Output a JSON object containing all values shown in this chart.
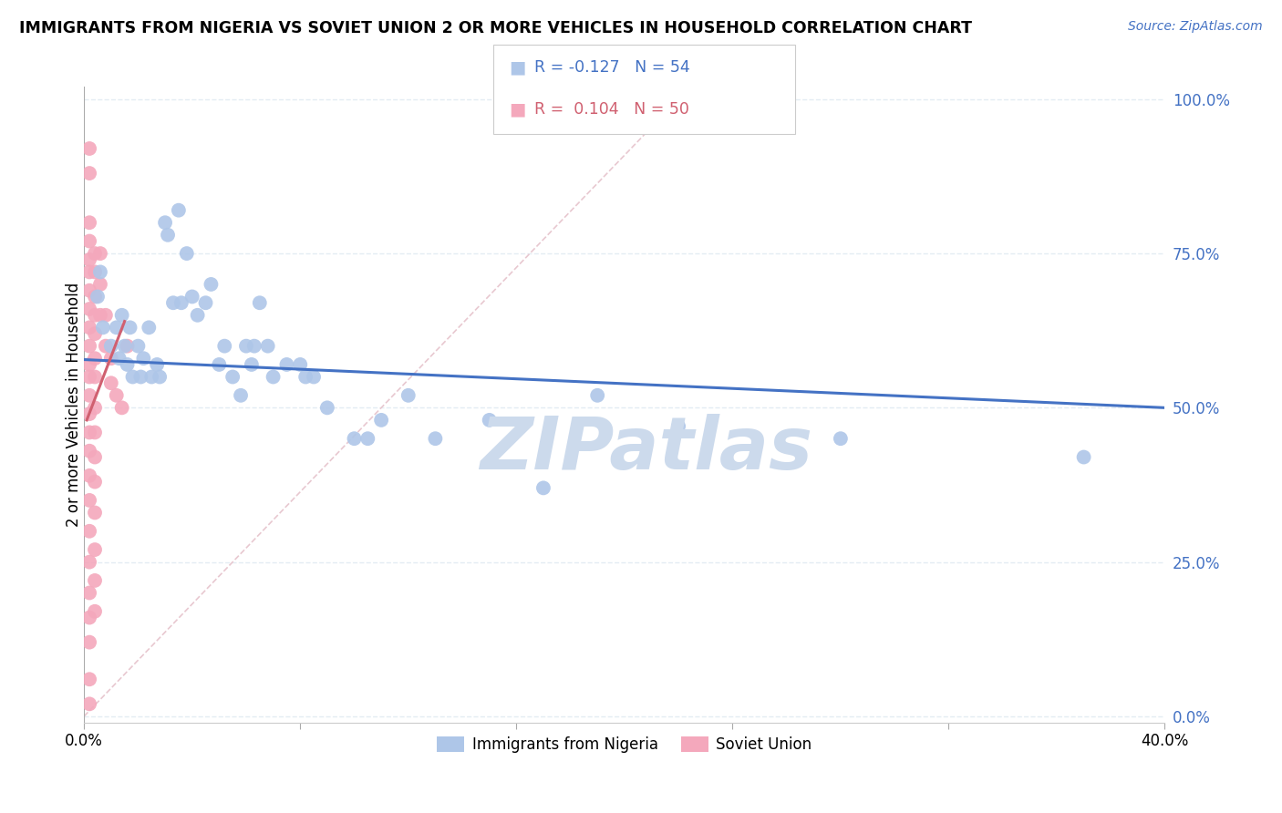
{
  "title": "IMMIGRANTS FROM NIGERIA VS SOVIET UNION 2 OR MORE VEHICLES IN HOUSEHOLD CORRELATION CHART",
  "source": "Source: ZipAtlas.com",
  "ylabel": "2 or more Vehicles in Household",
  "nigeria_R": -0.127,
  "nigeria_N": 54,
  "soviet_R": 0.104,
  "soviet_N": 50,
  "nigeria_color": "#aec6e8",
  "soviet_color": "#f4a8bc",
  "nigeria_line_color": "#4472c4",
  "soviet_line_color": "#d06070",
  "diag_line_color": "#e8c8d0",
  "nigeria_scatter": [
    [
      0.005,
      0.68
    ],
    [
      0.006,
      0.72
    ],
    [
      0.007,
      0.63
    ],
    [
      0.01,
      0.6
    ],
    [
      0.012,
      0.63
    ],
    [
      0.013,
      0.58
    ],
    [
      0.014,
      0.65
    ],
    [
      0.015,
      0.6
    ],
    [
      0.016,
      0.57
    ],
    [
      0.017,
      0.63
    ],
    [
      0.018,
      0.55
    ],
    [
      0.02,
      0.6
    ],
    [
      0.021,
      0.55
    ],
    [
      0.022,
      0.58
    ],
    [
      0.024,
      0.63
    ],
    [
      0.025,
      0.55
    ],
    [
      0.027,
      0.57
    ],
    [
      0.028,
      0.55
    ],
    [
      0.03,
      0.8
    ],
    [
      0.031,
      0.78
    ],
    [
      0.033,
      0.67
    ],
    [
      0.035,
      0.82
    ],
    [
      0.036,
      0.67
    ],
    [
      0.038,
      0.75
    ],
    [
      0.04,
      0.68
    ],
    [
      0.042,
      0.65
    ],
    [
      0.045,
      0.67
    ],
    [
      0.047,
      0.7
    ],
    [
      0.05,
      0.57
    ],
    [
      0.052,
      0.6
    ],
    [
      0.055,
      0.55
    ],
    [
      0.058,
      0.52
    ],
    [
      0.06,
      0.6
    ],
    [
      0.062,
      0.57
    ],
    [
      0.063,
      0.6
    ],
    [
      0.065,
      0.67
    ],
    [
      0.068,
      0.6
    ],
    [
      0.07,
      0.55
    ],
    [
      0.075,
      0.57
    ],
    [
      0.08,
      0.57
    ],
    [
      0.082,
      0.55
    ],
    [
      0.085,
      0.55
    ],
    [
      0.09,
      0.5
    ],
    [
      0.1,
      0.45
    ],
    [
      0.105,
      0.45
    ],
    [
      0.11,
      0.48
    ],
    [
      0.12,
      0.52
    ],
    [
      0.13,
      0.45
    ],
    [
      0.15,
      0.48
    ],
    [
      0.17,
      0.37
    ],
    [
      0.19,
      0.52
    ],
    [
      0.22,
      0.47
    ],
    [
      0.28,
      0.45
    ],
    [
      0.37,
      0.42
    ]
  ],
  "soviet_scatter": [
    [
      0.002,
      0.92
    ],
    [
      0.002,
      0.88
    ],
    [
      0.002,
      0.8
    ],
    [
      0.002,
      0.77
    ],
    [
      0.002,
      0.74
    ],
    [
      0.002,
      0.72
    ],
    [
      0.002,
      0.69
    ],
    [
      0.002,
      0.66
    ],
    [
      0.002,
      0.63
    ],
    [
      0.002,
      0.6
    ],
    [
      0.002,
      0.57
    ],
    [
      0.002,
      0.55
    ],
    [
      0.002,
      0.52
    ],
    [
      0.002,
      0.49
    ],
    [
      0.002,
      0.46
    ],
    [
      0.002,
      0.43
    ],
    [
      0.002,
      0.39
    ],
    [
      0.002,
      0.35
    ],
    [
      0.002,
      0.3
    ],
    [
      0.002,
      0.25
    ],
    [
      0.002,
      0.2
    ],
    [
      0.002,
      0.16
    ],
    [
      0.002,
      0.12
    ],
    [
      0.002,
      0.06
    ],
    [
      0.002,
      0.02
    ],
    [
      0.004,
      0.75
    ],
    [
      0.004,
      0.72
    ],
    [
      0.004,
      0.68
    ],
    [
      0.004,
      0.65
    ],
    [
      0.004,
      0.62
    ],
    [
      0.004,
      0.58
    ],
    [
      0.004,
      0.55
    ],
    [
      0.004,
      0.5
    ],
    [
      0.004,
      0.46
    ],
    [
      0.004,
      0.42
    ],
    [
      0.004,
      0.38
    ],
    [
      0.004,
      0.33
    ],
    [
      0.004,
      0.27
    ],
    [
      0.004,
      0.22
    ],
    [
      0.004,
      0.17
    ],
    [
      0.006,
      0.75
    ],
    [
      0.006,
      0.7
    ],
    [
      0.006,
      0.65
    ],
    [
      0.008,
      0.65
    ],
    [
      0.008,
      0.6
    ],
    [
      0.01,
      0.58
    ],
    [
      0.01,
      0.54
    ],
    [
      0.012,
      0.52
    ],
    [
      0.014,
      0.5
    ],
    [
      0.016,
      0.6
    ]
  ],
  "watermark": "ZIPatlas",
  "watermark_color": "#ccdaec",
  "background_color": "#ffffff",
  "grid_color": "#dde8f0",
  "ytick_color": "#4472c4",
  "xlim": [
    0.0,
    0.4
  ],
  "ylim": [
    -0.01,
    1.02
  ],
  "yticks": [
    0.0,
    0.25,
    0.5,
    0.75,
    1.0
  ],
  "ytick_labels": [
    "0.0%",
    "25.0%",
    "50.0%",
    "75.0%",
    "100.0%"
  ],
  "xticks": [
    0.0,
    0.08,
    0.16,
    0.24,
    0.32,
    0.4
  ],
  "xtick_labels": [
    "0.0%",
    "",
    "",
    "",
    "",
    "40.0%"
  ],
  "nigeria_line_x": [
    0.0,
    0.4
  ],
  "nigeria_line_y": [
    0.578,
    0.5
  ],
  "soviet_line_x": [
    0.001,
    0.015
  ],
  "soviet_line_y": [
    0.48,
    0.64
  ],
  "diag_line_x": [
    0.0,
    0.22
  ],
  "diag_line_y": [
    0.0,
    1.0
  ]
}
